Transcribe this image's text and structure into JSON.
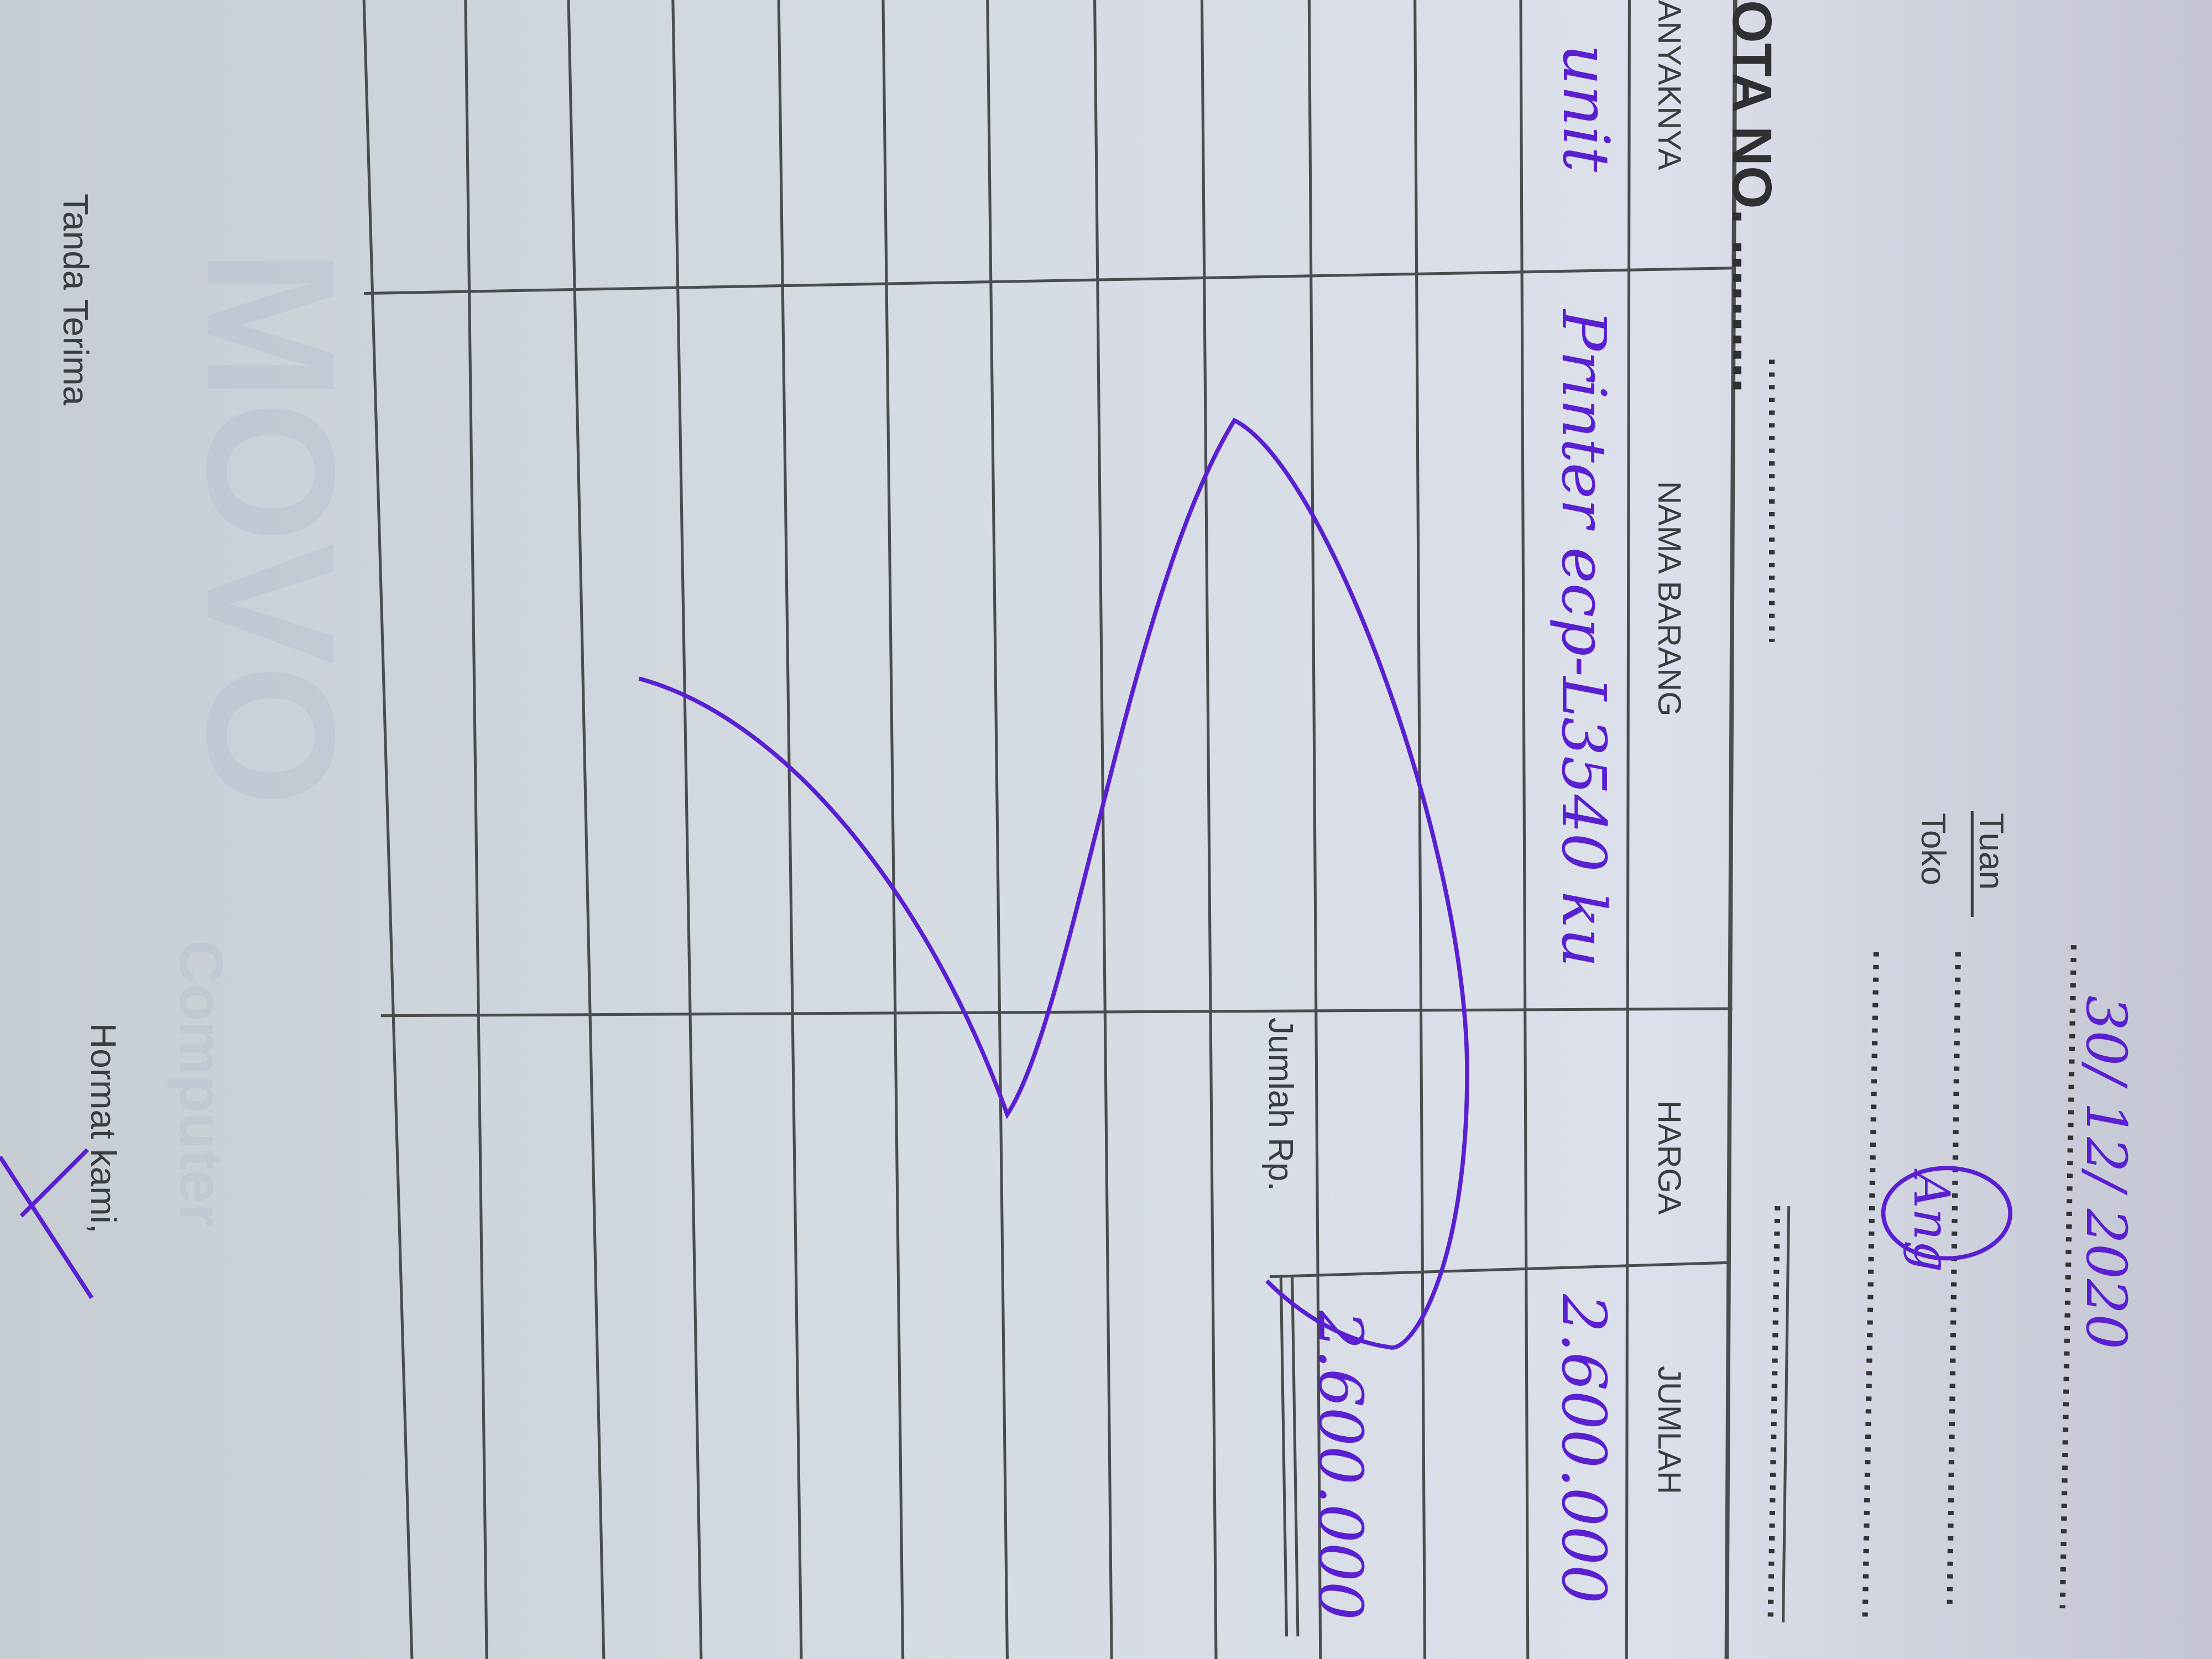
{
  "header": {
    "nota_label": "OTA NO. ..........",
    "tuan_label": "Tuan",
    "toko_label": "Toko",
    "date": "30/ 12/ 2020",
    "customer_signature": "Ang"
  },
  "table": {
    "columns": [
      "ANYAKNYA",
      "NAMA BARANG",
      "HARGA",
      "JUMLAH"
    ],
    "rows": [
      {
        "qty": "unit",
        "item": "Printer ecp-L3540 ku",
        "price": "2.600.000",
        "amount": ""
      }
    ]
  },
  "footer": {
    "total_label": "Jumlah Rp.",
    "total_value": "2.600.000",
    "received_label": "Tanda Terima",
    "regards_label": "Hormat kami,"
  },
  "watermark": {
    "text": "MOVO",
    "subtext": "Computer"
  },
  "colors": {
    "ink": "#5a1fd0",
    "print": "#3a3d40"
  }
}
